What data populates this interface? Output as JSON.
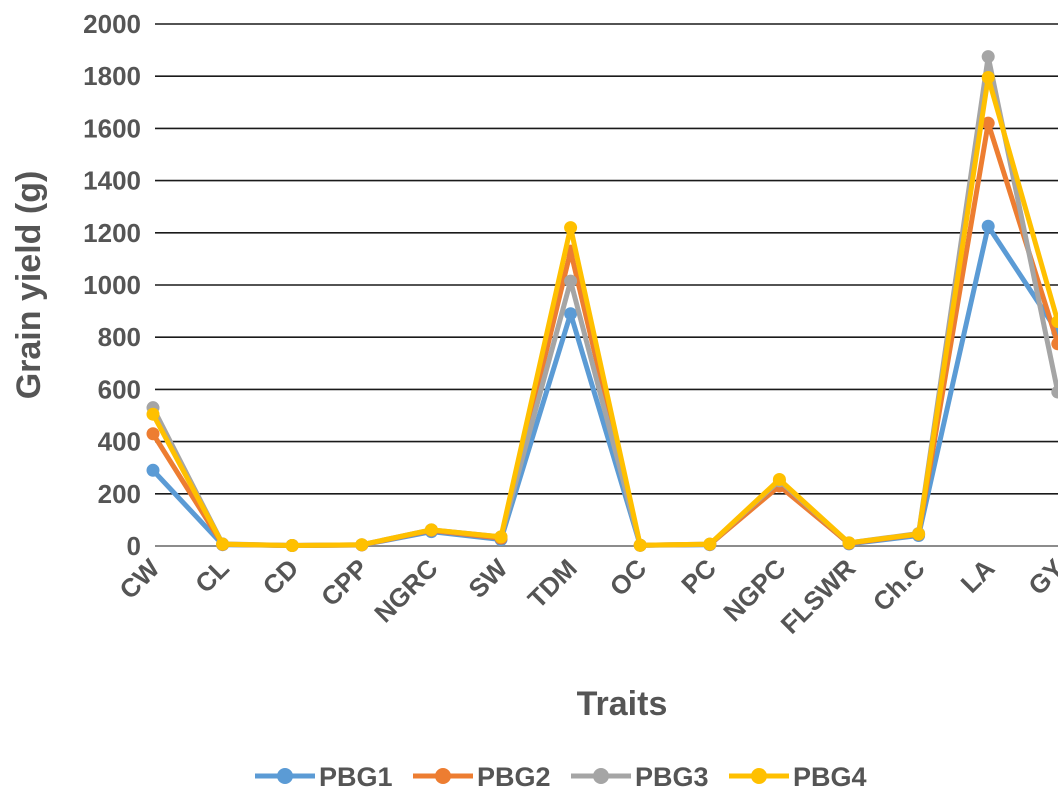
{
  "chart_data": {
    "type": "line",
    "xlabel": "Traits",
    "ylabel": "Grain yield (g)",
    "categories": [
      "CW",
      "CL",
      "CD",
      "CPP",
      "NGRC",
      "SW",
      "TDM",
      "OC",
      "PC",
      "NGPC",
      "FLSWR",
      "Ch.C",
      "LA",
      "GY"
    ],
    "ylim": [
      0,
      2000
    ],
    "yticks": [
      0,
      200,
      400,
      600,
      800,
      1000,
      1200,
      1400,
      1600,
      1800,
      2000
    ],
    "grid": true,
    "legend_position": "bottom",
    "series": [
      {
        "name": "PBG1",
        "color": "#5B9BD5",
        "values": [
          290,
          5,
          2,
          4,
          55,
          25,
          890,
          3,
          5,
          240,
          8,
          40,
          1225,
          820
        ]
      },
      {
        "name": "PBG2",
        "color": "#ED7D31",
        "values": [
          430,
          6,
          2,
          4,
          60,
          30,
          1130,
          3,
          6,
          230,
          10,
          45,
          1620,
          775
        ]
      },
      {
        "name": "PBG3",
        "color": "#A5A5A5",
        "values": [
          530,
          8,
          2,
          5,
          62,
          35,
          1015,
          3,
          7,
          250,
          12,
          48,
          1875,
          590
        ]
      },
      {
        "name": "PBG4",
        "color": "#FFC000",
        "values": [
          505,
          7,
          2,
          5,
          62,
          35,
          1220,
          3,
          7,
          255,
          12,
          46,
          1795,
          860
        ]
      }
    ]
  }
}
